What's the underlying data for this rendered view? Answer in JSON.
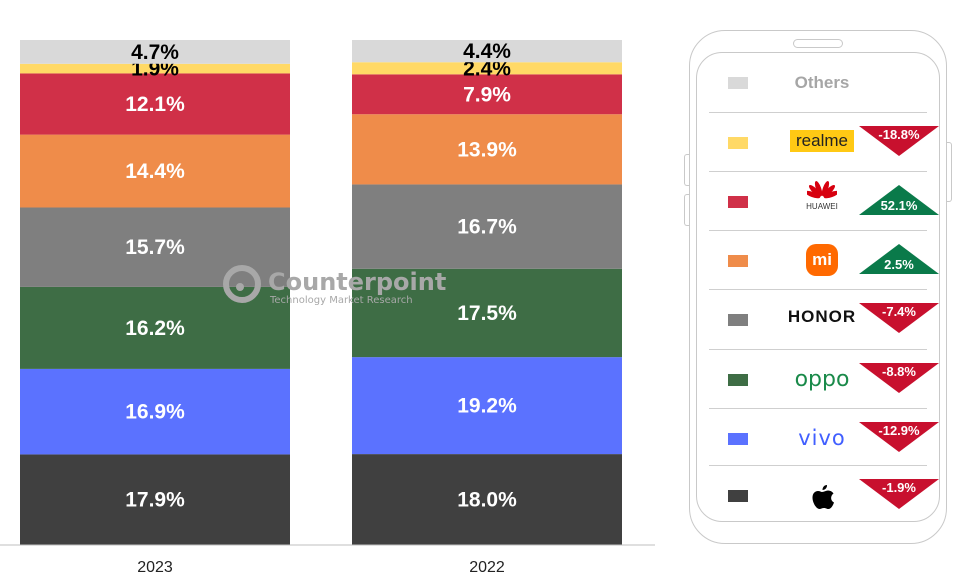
{
  "chart_data": {
    "type": "bar",
    "stacked": true,
    "percent_stacked": true,
    "categories": [
      "2023",
      "2022"
    ],
    "series": [
      {
        "name": "Apple",
        "color": "#404040",
        "values": [
          17.9,
          18.0
        ],
        "labels": [
          "17.9%",
          "18.0%"
        ]
      },
      {
        "name": "vivo",
        "color": "#5b72ff",
        "values": [
          16.9,
          19.2
        ],
        "labels": [
          "16.9%",
          "19.2%"
        ]
      },
      {
        "name": "OPPO",
        "color": "#3e6d45",
        "values": [
          16.2,
          17.5
        ],
        "labels": [
          "16.2%",
          "17.5%"
        ]
      },
      {
        "name": "HONOR",
        "color": "#7f7f7f",
        "values": [
          15.7,
          16.7
        ],
        "labels": [
          "15.7%",
          "16.7%"
        ]
      },
      {
        "name": "Xiaomi",
        "color": "#ef8c4a",
        "values": [
          14.4,
          13.9
        ],
        "labels": [
          "14.4%",
          "13.9%"
        ]
      },
      {
        "name": "HUAWEI",
        "color": "#d03048",
        "values": [
          12.1,
          7.9
        ],
        "labels": [
          "12.1%",
          "7.9%"
        ]
      },
      {
        "name": "realme",
        "color": "#ffd966",
        "values": [
          1.9,
          2.4
        ],
        "labels": [
          "1.9%",
          "2.4%"
        ]
      },
      {
        "name": "Others",
        "color": "#d9d9d9",
        "values": [
          4.7,
          4.4
        ],
        "labels": [
          "4.7%",
          "4.4%"
        ]
      }
    ],
    "ylim": [
      0,
      100
    ],
    "grid": false,
    "legend_placement": "right"
  },
  "watermark": {
    "brand": "Counterpoint",
    "tagline": "Technology Market Research"
  },
  "legend": {
    "others_label": "Others",
    "rows": [
      {
        "brand": "realme",
        "logo_text": "realme",
        "color": "#ffd966",
        "change": "-18.8%",
        "direction": "down"
      },
      {
        "brand": "HUAWEI",
        "logo_text": "HUAWEI",
        "color": "#d03048",
        "change": "52.1%",
        "direction": "up"
      },
      {
        "brand": "Xiaomi",
        "logo_text": "mi",
        "color": "#ef8c4a",
        "change": "2.5%",
        "direction": "up"
      },
      {
        "brand": "HONOR",
        "logo_text": "HONOR",
        "color": "#7f7f7f",
        "change": "-7.4%",
        "direction": "down"
      },
      {
        "brand": "OPPO",
        "logo_text": "oppo",
        "color": "#3e6d45",
        "change": "-8.8%",
        "direction": "down"
      },
      {
        "brand": "vivo",
        "logo_text": "vivo",
        "color": "#5b72ff",
        "change": "-12.9%",
        "direction": "down"
      },
      {
        "brand": "Apple",
        "logo_text": "",
        "color": "#404040",
        "change": "-1.9%",
        "direction": "down"
      }
    ],
    "colors": {
      "up": "#0a7a4a",
      "down": "#c8102e",
      "others": "#d9d9d9"
    }
  }
}
